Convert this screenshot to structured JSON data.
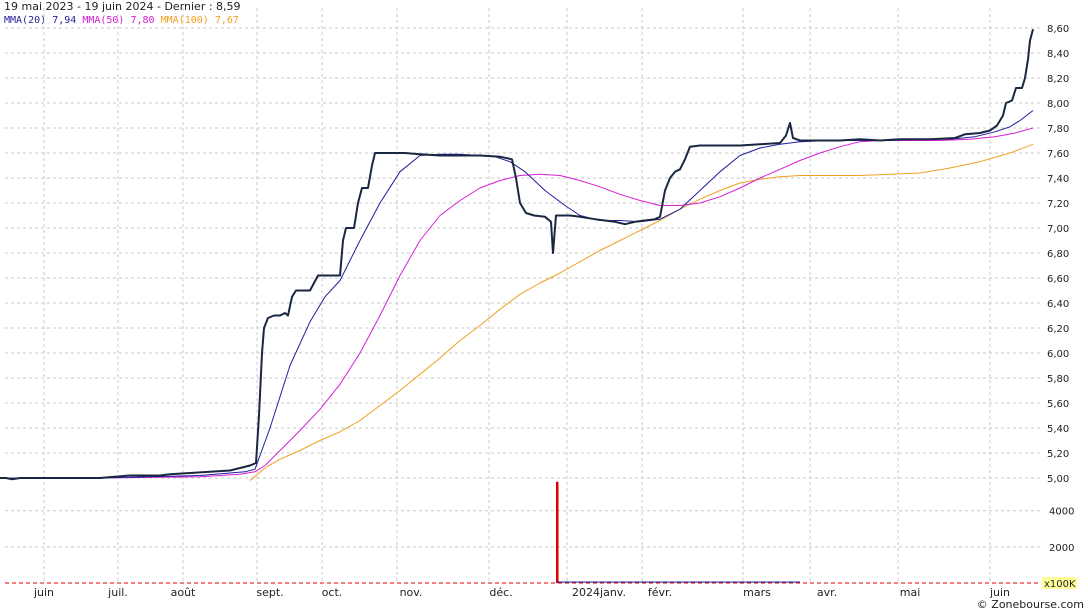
{
  "header": {
    "range_text": "19 mai 2023 - 19 juin 2024 - Dernier : 8,59"
  },
  "watermark": "© Zonebourse.com",
  "volume_unit": "x100K",
  "colors": {
    "price": "#1a2740",
    "mma20": "#1f1f9a",
    "mma50": "#d61fd6",
    "mma100": "#f0a020",
    "volume": "#dd0000",
    "grid": "#c8c8c8",
    "volume_unit_bg": "#ffff99"
  },
  "chart_data": {
    "type": "line",
    "title": "19 mai 2023 - 19 juin 2024 - Dernier : 8,59",
    "x_tick_labels": [
      "juin",
      "juil.",
      "août",
      "sept.",
      "oct.",
      "nov.",
      "déc.",
      "2024janv.",
      "févr.",
      "mars",
      "avr.",
      "mai",
      "juin"
    ],
    "y_tick_labels": [
      "5,00",
      "5,20",
      "5,40",
      "5,60",
      "5,80",
      "6,00",
      "6,20",
      "6,40",
      "6,60",
      "6,80",
      "7,00",
      "7,20",
      "7,40",
      "7,60",
      "7,80",
      "8,00",
      "8,20",
      "8,40",
      "8,60"
    ],
    "ylim": [
      4.98,
      8.62
    ],
    "grid": true,
    "series": [
      {
        "name": "",
        "label_value": "",
        "points": [
          [
            0,
            5.0
          ],
          [
            6,
            5.0
          ],
          [
            12,
            4.99
          ],
          [
            20,
            5.0
          ],
          [
            40,
            5.0
          ],
          [
            70,
            5.0
          ],
          [
            100,
            5.0
          ],
          [
            130,
            5.02
          ],
          [
            160,
            5.02
          ],
          [
            170,
            5.03
          ],
          [
            190,
            5.04
          ],
          [
            210,
            5.05
          ],
          [
            230,
            5.06
          ],
          [
            240,
            5.08
          ],
          [
            250,
            5.1
          ],
          [
            256,
            5.12
          ],
          [
            259,
            5.5
          ],
          [
            262,
            6.0
          ],
          [
            264,
            6.2
          ],
          [
            268,
            6.28
          ],
          [
            274,
            6.3
          ],
          [
            280,
            6.3
          ],
          [
            285,
            6.32
          ],
          [
            288,
            6.3
          ],
          [
            292,
            6.45
          ],
          [
            296,
            6.5
          ],
          [
            302,
            6.5
          ],
          [
            310,
            6.5
          ],
          [
            314,
            6.56
          ],
          [
            318,
            6.62
          ],
          [
            326,
            6.62
          ],
          [
            335,
            6.62
          ],
          [
            340,
            6.62
          ],
          [
            343,
            6.9
          ],
          [
            346,
            7.0
          ],
          [
            350,
            7.0
          ],
          [
            354,
            7.0
          ],
          [
            358,
            7.2
          ],
          [
            362,
            7.32
          ],
          [
            368,
            7.32
          ],
          [
            372,
            7.5
          ],
          [
            375,
            7.6
          ],
          [
            385,
            7.6
          ],
          [
            395,
            7.6
          ],
          [
            405,
            7.6
          ],
          [
            420,
            7.59
          ],
          [
            440,
            7.58
          ],
          [
            460,
            7.58
          ],
          [
            480,
            7.58
          ],
          [
            500,
            7.57
          ],
          [
            512,
            7.55
          ],
          [
            516,
            7.4
          ],
          [
            520,
            7.2
          ],
          [
            526,
            7.12
          ],
          [
            534,
            7.1
          ],
          [
            545,
            7.09
          ],
          [
            551,
            7.05
          ],
          [
            553,
            6.8
          ],
          [
            556,
            7.1
          ],
          [
            570,
            7.1
          ],
          [
            580,
            7.09
          ],
          [
            595,
            7.07
          ],
          [
            615,
            7.05
          ],
          [
            625,
            7.03
          ],
          [
            635,
            7.05
          ],
          [
            645,
            7.06
          ],
          [
            655,
            7.07
          ],
          [
            660,
            7.09
          ],
          [
            665,
            7.3
          ],
          [
            670,
            7.4
          ],
          [
            675,
            7.45
          ],
          [
            680,
            7.47
          ],
          [
            685,
            7.55
          ],
          [
            690,
            7.65
          ],
          [
            700,
            7.66
          ],
          [
            720,
            7.66
          ],
          [
            740,
            7.66
          ],
          [
            760,
            7.67
          ],
          [
            780,
            7.68
          ],
          [
            786,
            7.74
          ],
          [
            790,
            7.84
          ],
          [
            793,
            7.72
          ],
          [
            800,
            7.7
          ],
          [
            820,
            7.7
          ],
          [
            840,
            7.7
          ],
          [
            860,
            7.71
          ],
          [
            880,
            7.7
          ],
          [
            900,
            7.71
          ],
          [
            930,
            7.71
          ],
          [
            955,
            7.72
          ],
          [
            965,
            7.75
          ],
          [
            980,
            7.76
          ],
          [
            990,
            7.78
          ],
          [
            997,
            7.82
          ],
          [
            1003,
            7.9
          ],
          [
            1006,
            8.0
          ],
          [
            1012,
            8.02
          ],
          [
            1016,
            8.12
          ],
          [
            1022,
            8.12
          ],
          [
            1025,
            8.2
          ],
          [
            1028,
            8.35
          ],
          [
            1030,
            8.5
          ],
          [
            1033,
            8.59
          ]
        ]
      },
      {
        "name": "MMA(20)",
        "label_value": "7,94",
        "points": [
          [
            0,
            5.0
          ],
          [
            100,
            5.0
          ],
          [
            200,
            5.02
          ],
          [
            245,
            5.05
          ],
          [
            255,
            5.07
          ],
          [
            270,
            5.4
          ],
          [
            290,
            5.9
          ],
          [
            310,
            6.25
          ],
          [
            325,
            6.45
          ],
          [
            340,
            6.58
          ],
          [
            360,
            6.9
          ],
          [
            380,
            7.2
          ],
          [
            400,
            7.45
          ],
          [
            420,
            7.58
          ],
          [
            440,
            7.59
          ],
          [
            460,
            7.59
          ],
          [
            480,
            7.58
          ],
          [
            495,
            7.57
          ],
          [
            510,
            7.53
          ],
          [
            525,
            7.45
          ],
          [
            545,
            7.3
          ],
          [
            565,
            7.18
          ],
          [
            580,
            7.1
          ],
          [
            600,
            7.06
          ],
          [
            620,
            7.06
          ],
          [
            640,
            7.05
          ],
          [
            660,
            7.07
          ],
          [
            680,
            7.15
          ],
          [
            700,
            7.3
          ],
          [
            720,
            7.45
          ],
          [
            740,
            7.58
          ],
          [
            760,
            7.64
          ],
          [
            780,
            7.67
          ],
          [
            800,
            7.69
          ],
          [
            830,
            7.7
          ],
          [
            860,
            7.7
          ],
          [
            890,
            7.7
          ],
          [
            920,
            7.71
          ],
          [
            950,
            7.71
          ],
          [
            975,
            7.73
          ],
          [
            995,
            7.77
          ],
          [
            1010,
            7.81
          ],
          [
            1020,
            7.86
          ],
          [
            1033,
            7.94
          ]
        ]
      },
      {
        "name": "MMA(50)",
        "label_value": "7,80",
        "points": [
          [
            0,
            5.0
          ],
          [
            100,
            5.0
          ],
          [
            200,
            5.01
          ],
          [
            240,
            5.03
          ],
          [
            255,
            5.05
          ],
          [
            265,
            5.1
          ],
          [
            280,
            5.22
          ],
          [
            300,
            5.38
          ],
          [
            320,
            5.55
          ],
          [
            340,
            5.75
          ],
          [
            360,
            6.0
          ],
          [
            380,
            6.3
          ],
          [
            400,
            6.62
          ],
          [
            420,
            6.9
          ],
          [
            440,
            7.1
          ],
          [
            460,
            7.22
          ],
          [
            480,
            7.32
          ],
          [
            500,
            7.38
          ],
          [
            520,
            7.42
          ],
          [
            540,
            7.43
          ],
          [
            560,
            7.42
          ],
          [
            580,
            7.38
          ],
          [
            600,
            7.33
          ],
          [
            620,
            7.27
          ],
          [
            640,
            7.22
          ],
          [
            660,
            7.18
          ],
          [
            680,
            7.18
          ],
          [
            700,
            7.2
          ],
          [
            720,
            7.25
          ],
          [
            740,
            7.32
          ],
          [
            760,
            7.4
          ],
          [
            780,
            7.47
          ],
          [
            800,
            7.54
          ],
          [
            820,
            7.6
          ],
          [
            840,
            7.65
          ],
          [
            860,
            7.69
          ],
          [
            880,
            7.7
          ],
          [
            910,
            7.7
          ],
          [
            940,
            7.7
          ],
          [
            970,
            7.71
          ],
          [
            995,
            7.73
          ],
          [
            1015,
            7.76
          ],
          [
            1033,
            7.8
          ]
        ]
      },
      {
        "name": "MMA(100)",
        "label_value": "7,67",
        "points": [
          [
            250,
            4.98
          ],
          [
            265,
            5.08
          ],
          [
            280,
            5.15
          ],
          [
            300,
            5.22
          ],
          [
            320,
            5.3
          ],
          [
            340,
            5.37
          ],
          [
            360,
            5.46
          ],
          [
            380,
            5.58
          ],
          [
            400,
            5.7
          ],
          [
            420,
            5.83
          ],
          [
            440,
            5.96
          ],
          [
            460,
            6.1
          ],
          [
            480,
            6.22
          ],
          [
            500,
            6.35
          ],
          [
            520,
            6.47
          ],
          [
            540,
            6.56
          ],
          [
            560,
            6.64
          ],
          [
            580,
            6.73
          ],
          [
            600,
            6.82
          ],
          [
            620,
            6.9
          ],
          [
            640,
            6.98
          ],
          [
            660,
            7.06
          ],
          [
            680,
            7.15
          ],
          [
            700,
            7.23
          ],
          [
            720,
            7.3
          ],
          [
            740,
            7.36
          ],
          [
            760,
            7.39
          ],
          [
            780,
            7.41
          ],
          [
            800,
            7.42
          ],
          [
            830,
            7.42
          ],
          [
            860,
            7.42
          ],
          [
            890,
            7.43
          ],
          [
            920,
            7.44
          ],
          [
            950,
            7.48
          ],
          [
            980,
            7.53
          ],
          [
            1010,
            7.6
          ],
          [
            1033,
            7.67
          ]
        ]
      }
    ],
    "volume": {
      "y_tick_labels": [
        "2000",
        "4000"
      ],
      "ylim": [
        0,
        5700
      ],
      "bars": [
        [
          557,
          5600
        ]
      ]
    }
  }
}
